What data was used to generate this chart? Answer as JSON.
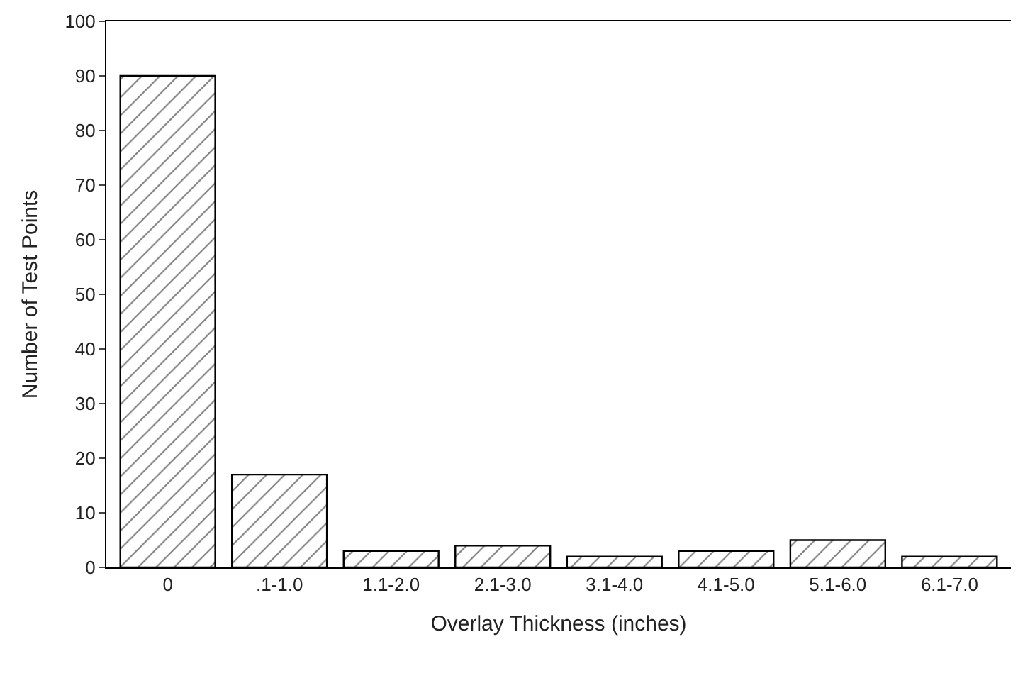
{
  "chart_data": {
    "type": "bar",
    "xlabel": "Overlay Thickness (inches)",
    "ylabel": "Number of Test Points",
    "categories": [
      "0",
      ".1-1.0",
      "1.1-2.0",
      "2.1-3.0",
      "3.1-4.0",
      "4.1-5.0",
      "5.1-6.0",
      "6.1-7.0"
    ],
    "values": [
      90,
      17,
      3,
      4,
      2,
      3,
      5,
      2
    ],
    "color": "#000000",
    "ylim": [
      0,
      100
    ],
    "yticks": [
      0,
      10,
      20,
      30,
      40,
      50,
      60,
      70,
      80,
      90,
      100
    ]
  }
}
